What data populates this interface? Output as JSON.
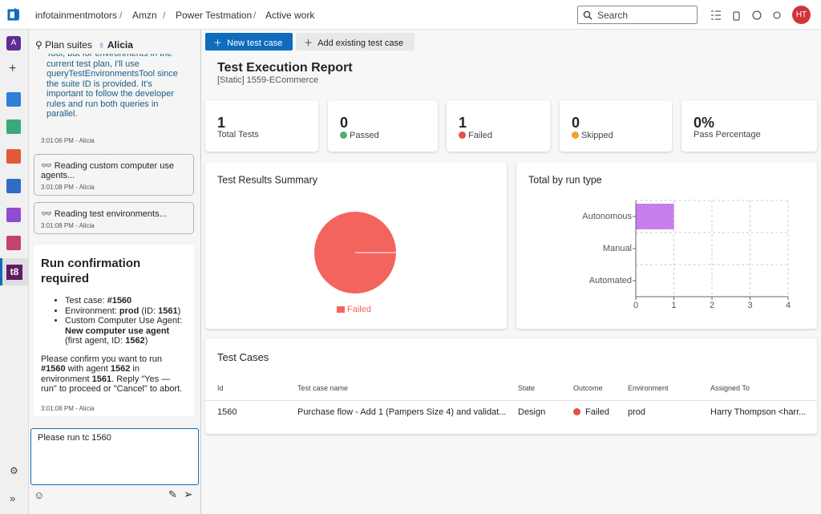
{
  "topbar": {
    "breadcrumb": [
      "infotainmentmotors",
      "Amzn",
      "Power Testmation",
      "Active work"
    ],
    "search_placeholder": "Search",
    "avatar": "HT"
  },
  "rail": {
    "org_initial": "A",
    "app_label": "t8"
  },
  "chat": {
    "tabs": [
      "Plan suites",
      "Alicia"
    ],
    "messages": [
      {
        "text": "Tool, but for environments in the current test plan, I'll use queryTestEnvironmentsTool since the suite ID is provided. It's important to follow the developer rules and run both queries in parallel.",
        "time": "3:01:06 PM - Alicia"
      },
      {
        "text": "👓 Reading custom computer use agents...",
        "time": "3:01:08 PM - Alicia"
      },
      {
        "text": "👓 Reading test environments...",
        "time": "3:01:08 PM - Alicia"
      }
    ],
    "confirmation": {
      "title": "Run confirmation required",
      "items": [
        [
          {
            "text": "Test case: "
          },
          {
            "text": "#1560",
            "bold": true
          }
        ],
        [
          {
            "text": "Environment: "
          },
          {
            "text": "prod",
            "bold": true
          },
          {
            "text": " (ID: "
          },
          {
            "text": "1561",
            "bold": true
          },
          {
            "text": ")"
          }
        ],
        [
          {
            "text": "Custom Computer Use Agent: "
          },
          {
            "text": "New computer use agent",
            "bold": true
          },
          {
            "text": " (first agent, ID: "
          },
          {
            "text": "1562",
            "bold": true
          },
          {
            "text": ")"
          }
        ]
      ],
      "paragraph": [
        {
          "text": "Please confirm you want to run "
        },
        {
          "text": "#1560",
          "bold": true
        },
        {
          "text": " with agent "
        },
        {
          "text": "1562",
          "bold": true
        },
        {
          "text": " in environment "
        },
        {
          "text": "1561",
          "bold": true
        },
        {
          "text": ". Reply \"Yes — run\" to proceed or \"Cancel\" to abort."
        }
      ],
      "time": "3:01:08 PM - Alicia"
    },
    "input": "Please run tc 1560"
  },
  "toolbar": {
    "buttons": [
      "New test case",
      "Add existing test case"
    ]
  },
  "report": {
    "title": "Test Execution Report",
    "subtitle": "[Static] 1559-ECommerce",
    "stats": [
      {
        "value": 1,
        "label": "Total Tests"
      },
      {
        "value": 0,
        "label": "Passed"
      },
      {
        "value": 1,
        "label": "Failed"
      },
      {
        "value": 0,
        "label": "Skipped"
      },
      {
        "value": "0%",
        "label": "Pass Percentage"
      }
    ]
  },
  "chart_data": [
    {
      "type": "pie",
      "title": "Test Results Summary",
      "categories": [
        "Failed"
      ],
      "values": [
        1
      ],
      "colors": [
        "#f4645f"
      ]
    },
    {
      "type": "bar",
      "orientation": "horizontal",
      "title": "Total by run type",
      "categories": [
        "Autonomous",
        "Manual",
        "Automated"
      ],
      "values": [
        1,
        0,
        0
      ],
      "color": "#c77dec",
      "xlim": [
        0,
        4
      ],
      "xticks": [
        0,
        1,
        2,
        3,
        4
      ],
      "grid": true
    }
  ],
  "table": {
    "title": "Test Cases",
    "columns": [
      "Id",
      "Test case name",
      "State",
      "Outcome",
      "Environment",
      "Assigned To"
    ],
    "rows": [
      [
        1560,
        "Purchase flow - Add 1 (Pampers Size 4) and validat...",
        "Design",
        "Failed",
        "prod",
        "Harry Thompson <harr..."
      ]
    ]
  }
}
